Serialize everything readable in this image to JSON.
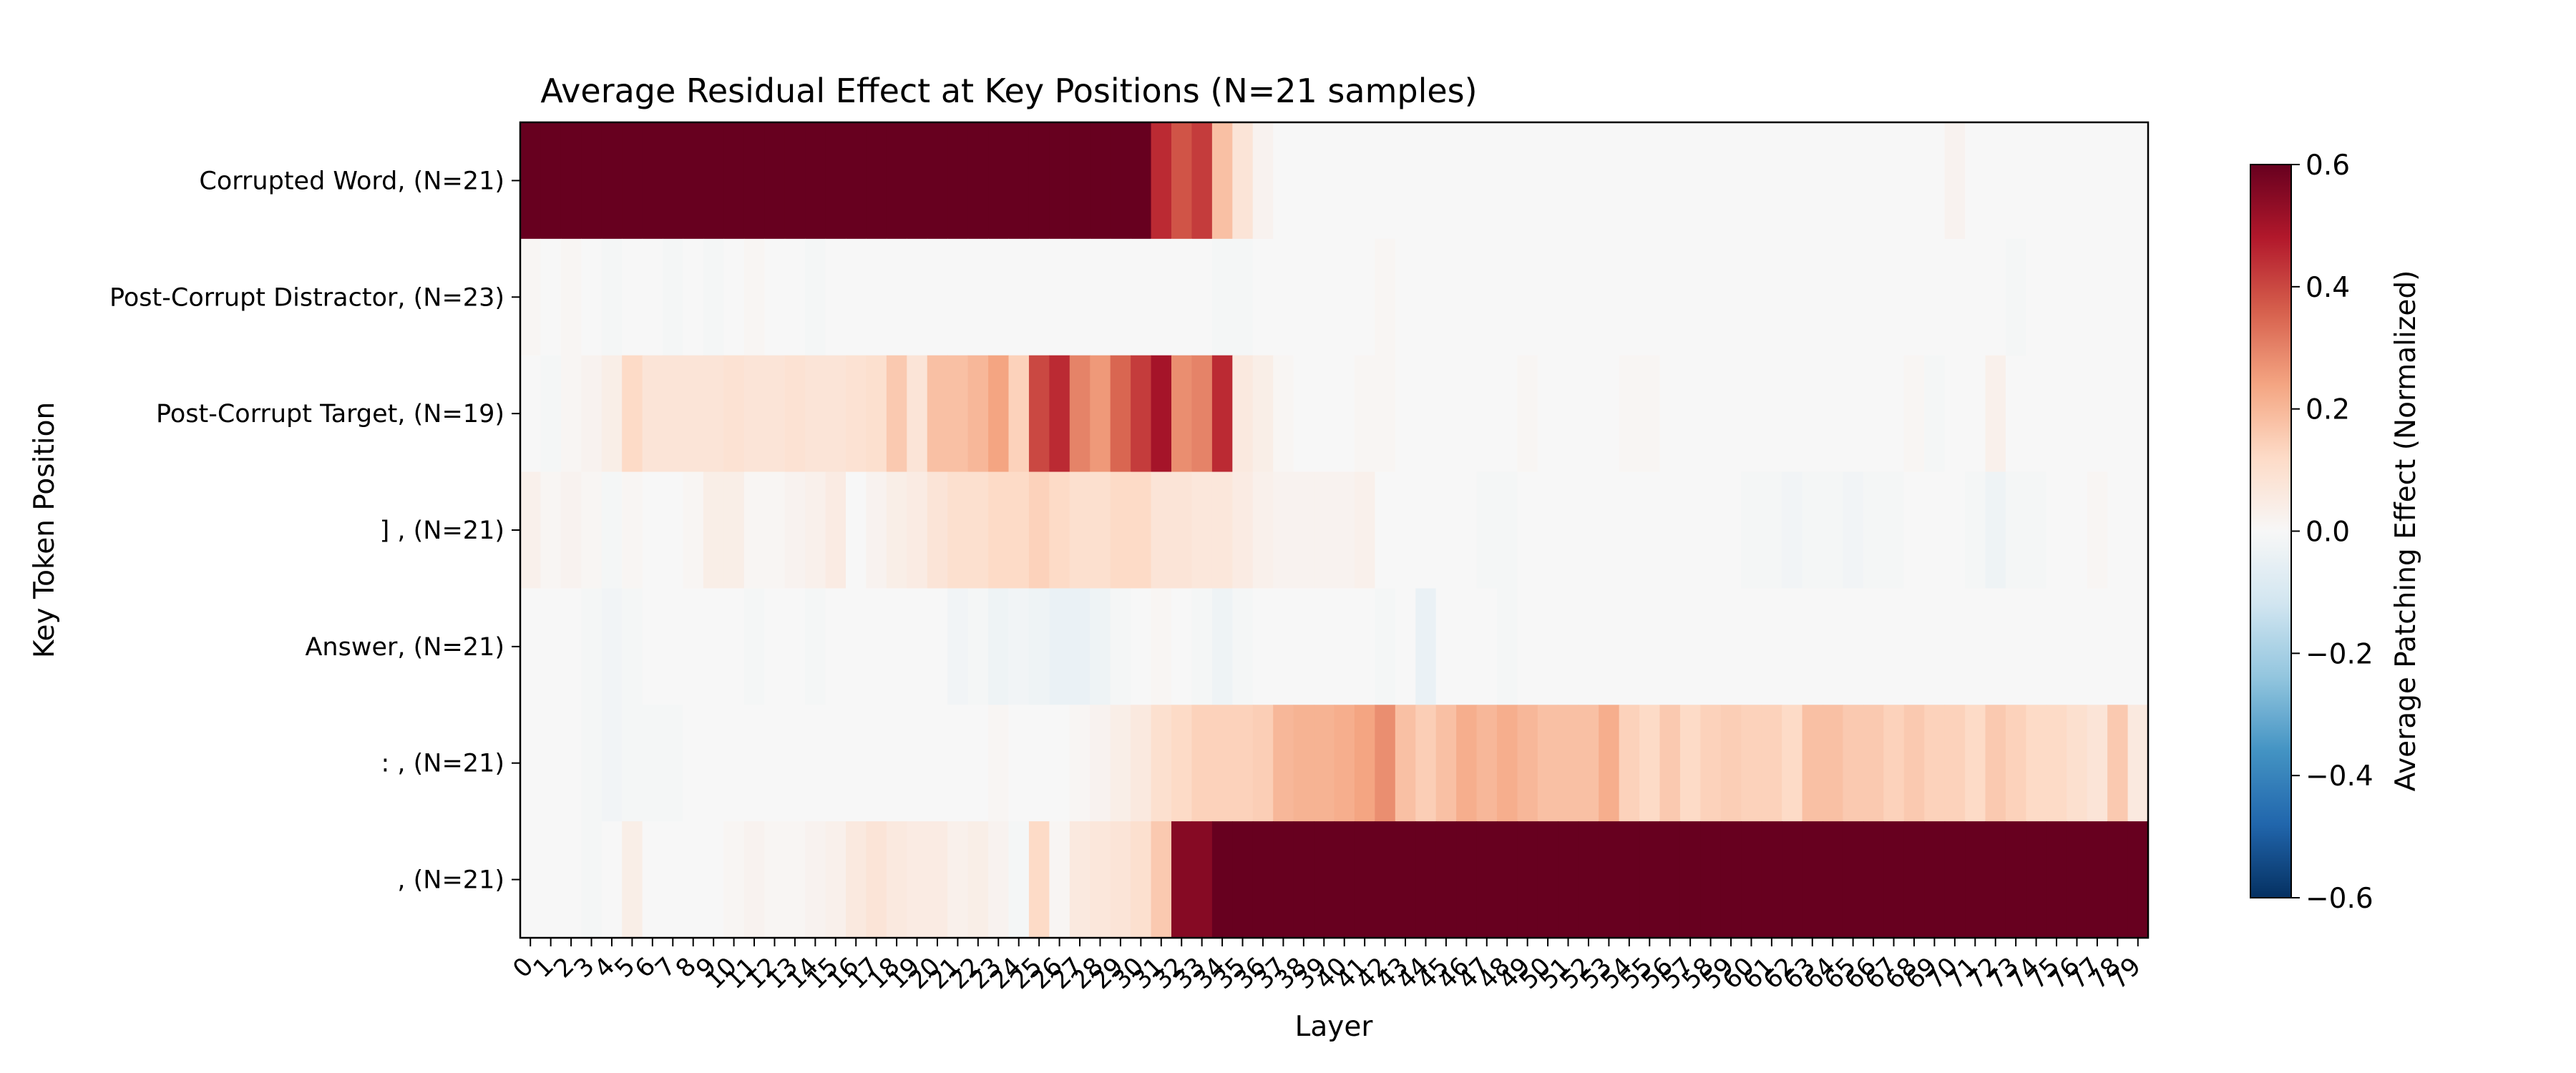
{
  "chart_data": {
    "type": "heatmap",
    "title": "Average Residual Effect at Key Positions (N=21 samples)",
    "xlabel": "Layer",
    "ylabel": "Key Token Position",
    "colorbar_label": "Average Patching Effect (Normalized)",
    "colormap": "RdBu_r",
    "vmin": -0.6,
    "vmax": 0.6,
    "colorbar_ticks": [
      "0.6",
      "0.4",
      "0.2",
      "0.0",
      "−0.2",
      "−0.4",
      "−0.6"
    ],
    "colorbar_tick_values": [
      0.6,
      0.4,
      0.2,
      0.0,
      -0.2,
      -0.4,
      -0.6
    ],
    "x": [
      0,
      1,
      2,
      3,
      4,
      5,
      6,
      7,
      8,
      9,
      10,
      11,
      12,
      13,
      14,
      15,
      16,
      17,
      18,
      19,
      20,
      21,
      22,
      23,
      24,
      25,
      26,
      27,
      28,
      29,
      30,
      31,
      32,
      33,
      34,
      35,
      36,
      37,
      38,
      39,
      40,
      41,
      42,
      43,
      44,
      45,
      46,
      47,
      48,
      49,
      50,
      51,
      52,
      53,
      54,
      55,
      56,
      57,
      58,
      59,
      60,
      61,
      62,
      63,
      64,
      65,
      66,
      67,
      68,
      69,
      70,
      71,
      72,
      73,
      74,
      75,
      76,
      77,
      78,
      79
    ],
    "rows": [
      "Corrupted Word, (N=21)",
      "Post-Corrupt Distractor, (N=23)",
      "Post-Corrupt Target, (N=19)",
      "] , (N=21)",
      "Answer, (N=21)",
      ": , (N=21)",
      ", (N=21)"
    ],
    "values": [
      [
        0.6,
        0.6,
        0.6,
        0.6,
        0.6,
        0.6,
        0.6,
        0.6,
        0.6,
        0.6,
        0.6,
        0.6,
        0.6,
        0.6,
        0.6,
        0.6,
        0.6,
        0.6,
        0.6,
        0.6,
        0.6,
        0.6,
        0.6,
        0.6,
        0.6,
        0.6,
        0.6,
        0.6,
        0.6,
        0.6,
        0.6,
        0.45,
        0.38,
        0.42,
        0.18,
        0.08,
        0.02,
        0,
        0,
        0,
        0,
        0,
        0,
        0,
        0,
        0,
        0,
        0,
        0,
        0,
        0,
        0,
        0,
        0,
        0,
        0,
        0,
        0,
        0,
        0,
        0,
        0,
        0,
        0,
        0,
        0,
        0,
        0,
        0,
        0,
        0.02,
        0,
        0,
        0,
        0,
        0,
        0,
        0,
        0,
        0
      ],
      [
        0.01,
        0,
        0.01,
        0,
        -0.01,
        0,
        0,
        -0.01,
        0,
        -0.01,
        0,
        0.01,
        0,
        0,
        -0.01,
        0,
        0,
        0,
        0,
        0,
        0,
        0,
        0,
        0,
        0,
        0,
        0,
        0,
        0,
        0,
        0,
        0,
        0,
        0,
        -0.01,
        -0.01,
        0,
        0,
        0,
        0,
        0,
        0,
        0.01,
        0,
        0,
        0,
        0,
        0,
        0,
        0,
        0,
        0,
        0,
        0,
        0,
        0,
        0,
        0,
        0,
        0,
        0,
        0,
        0,
        0,
        0,
        0,
        0,
        0,
        0,
        0,
        0,
        0,
        0,
        -0.01,
        0,
        0,
        0,
        0,
        0,
        0
      ],
      [
        0,
        -0.01,
        0.01,
        0.02,
        0.04,
        0.12,
        0.08,
        0.08,
        0.08,
        0.08,
        0.09,
        0.08,
        0.08,
        0.09,
        0.08,
        0.08,
        0.09,
        0.1,
        0.16,
        0.08,
        0.18,
        0.18,
        0.2,
        0.24,
        0.14,
        0.4,
        0.45,
        0.3,
        0.26,
        0.35,
        0.42,
        0.5,
        0.28,
        0.3,
        0.45,
        0.06,
        0.04,
        0.01,
        0,
        0,
        0,
        0.01,
        0.01,
        0,
        0,
        0,
        0,
        0,
        0,
        0.01,
        0,
        0,
        0,
        0,
        0.01,
        0.01,
        0,
        0,
        0,
        0,
        0,
        0,
        0,
        0,
        0,
        0,
        0,
        0,
        0.01,
        -0.01,
        0,
        0,
        0.03,
        0,
        0,
        0,
        0,
        0,
        0,
        0
      ],
      [
        0.03,
        0.01,
        0.02,
        0.01,
        -0.01,
        0.01,
        0,
        0,
        0.01,
        0.04,
        0.04,
        0.01,
        0.01,
        0.02,
        0.03,
        0.05,
        0,
        0.02,
        0.04,
        0.05,
        0.08,
        0.1,
        0.1,
        0.12,
        0.12,
        0.14,
        0.12,
        0.1,
        0.1,
        0.12,
        0.12,
        0.08,
        0.08,
        0.07,
        0.07,
        0.05,
        0.03,
        0.02,
        0.02,
        0.02,
        0.02,
        0.03,
        0,
        0,
        0,
        0,
        0,
        -0.01,
        -0.01,
        0,
        0,
        0,
        0,
        0,
        0,
        0,
        0,
        0,
        0,
        0,
        -0.01,
        -0.01,
        -0.02,
        -0.01,
        -0.01,
        -0.02,
        -0.01,
        -0.01,
        0,
        0,
        0,
        -0.01,
        -0.03,
        -0.01,
        -0.01,
        0,
        0,
        0.01,
        0,
        0
      ],
      [
        0,
        0,
        0,
        -0.01,
        -0.02,
        -0.01,
        0,
        0,
        0,
        0,
        0,
        -0.01,
        0,
        0,
        -0.01,
        0,
        0,
        0,
        0,
        0,
        0,
        -0.02,
        -0.01,
        -0.03,
        -0.02,
        -0.03,
        -0.04,
        -0.04,
        -0.03,
        -0.01,
        0,
        0.01,
        0,
        -0.01,
        -0.03,
        -0.01,
        0,
        0,
        0,
        0,
        0,
        0,
        -0.01,
        0,
        -0.04,
        0,
        0,
        0,
        -0.01,
        0,
        0,
        0,
        0,
        0,
        0,
        0,
        0,
        0,
        0,
        0,
        0,
        0,
        0,
        0,
        0,
        0,
        0,
        0,
        0,
        0,
        0,
        0,
        0,
        0,
        0,
        0,
        0,
        0,
        0,
        0
      ],
      [
        0,
        0,
        0,
        -0.01,
        -0.02,
        -0.01,
        -0.01,
        -0.01,
        0,
        0,
        0,
        0,
        0,
        0,
        0,
        0,
        0,
        0,
        0,
        0,
        0,
        0,
        0,
        0.01,
        0,
        0,
        0,
        0.01,
        0.02,
        0.04,
        0.06,
        0.1,
        0.12,
        0.14,
        0.14,
        0.14,
        0.15,
        0.2,
        0.21,
        0.21,
        0.22,
        0.24,
        0.28,
        0.18,
        0.15,
        0.18,
        0.22,
        0.2,
        0.22,
        0.2,
        0.18,
        0.18,
        0.18,
        0.22,
        0.14,
        0.12,
        0.16,
        0.12,
        0.14,
        0.15,
        0.14,
        0.14,
        0.12,
        0.18,
        0.18,
        0.16,
        0.16,
        0.14,
        0.16,
        0.14,
        0.14,
        0.12,
        0.16,
        0.14,
        0.12,
        0.12,
        0.1,
        0.08,
        0.16,
        0.06
      ],
      [
        0,
        0,
        0,
        -0.01,
        0,
        0.04,
        0,
        0,
        0,
        0,
        0.01,
        0.02,
        0.01,
        0.01,
        0.02,
        0.03,
        0.06,
        0.08,
        0.06,
        0.05,
        0.05,
        0.03,
        0.04,
        0.02,
        -0.01,
        0.12,
        0.01,
        0.06,
        0.07,
        0.08,
        0.1,
        0.16,
        0.55,
        0.55,
        0.6,
        0.6,
        0.6,
        0.6,
        0.6,
        0.6,
        0.6,
        0.6,
        0.6,
        0.6,
        0.6,
        0.6,
        0.6,
        0.6,
        0.6,
        0.6,
        0.6,
        0.6,
        0.6,
        0.6,
        0.6,
        0.6,
        0.6,
        0.6,
        0.6,
        0.6,
        0.6,
        0.6,
        0.6,
        0.6,
        0.6,
        0.6,
        0.6,
        0.6,
        0.6,
        0.6,
        0.6,
        0.6,
        0.6,
        0.6,
        0.6,
        0.6,
        0.6,
        0.6,
        0.6,
        0.6
      ]
    ]
  }
}
